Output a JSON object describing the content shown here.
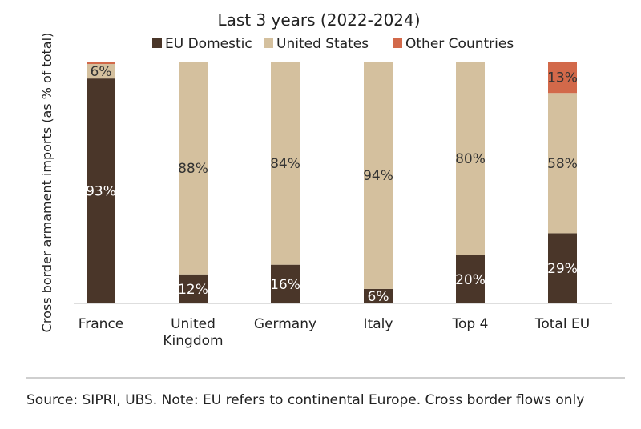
{
  "chart_data": {
    "type": "bar",
    "stacked": true,
    "title": "Last 3 years (2022-2024)",
    "ylabel": "Cross border armament imports (as % of total)",
    "xlabel": "",
    "ylim": [
      0,
      100
    ],
    "grid": false,
    "legend_position": "top",
    "categories": [
      "France",
      "United Kingdom",
      "Germany",
      "Italy",
      "Top 4",
      "Total EU"
    ],
    "series": [
      {
        "name": "EU Domestic",
        "color": "#4a3629",
        "values": [
          93,
          12,
          16,
          6,
          20,
          29
        ]
      },
      {
        "name": "United States",
        "color": "#d4c09e",
        "values": [
          6,
          88,
          84,
          94,
          80,
          58
        ]
      },
      {
        "name": "Other Countries",
        "color": "#d2694a",
        "values": [
          1,
          0,
          0,
          0,
          0,
          13
        ]
      }
    ],
    "data_labels": [
      [
        "93%",
        "12%",
        "16%",
        "6%",
        "20%",
        "29%"
      ],
      [
        "6%",
        "88%",
        "84%",
        "94%",
        "80%",
        "58%"
      ],
      [
        "",
        "",
        "",
        "",
        "",
        "13%"
      ]
    ]
  },
  "footer": {
    "source": "Source: SIPRI, UBS. Note: EU refers to continental Europe. Cross border flows only"
  }
}
